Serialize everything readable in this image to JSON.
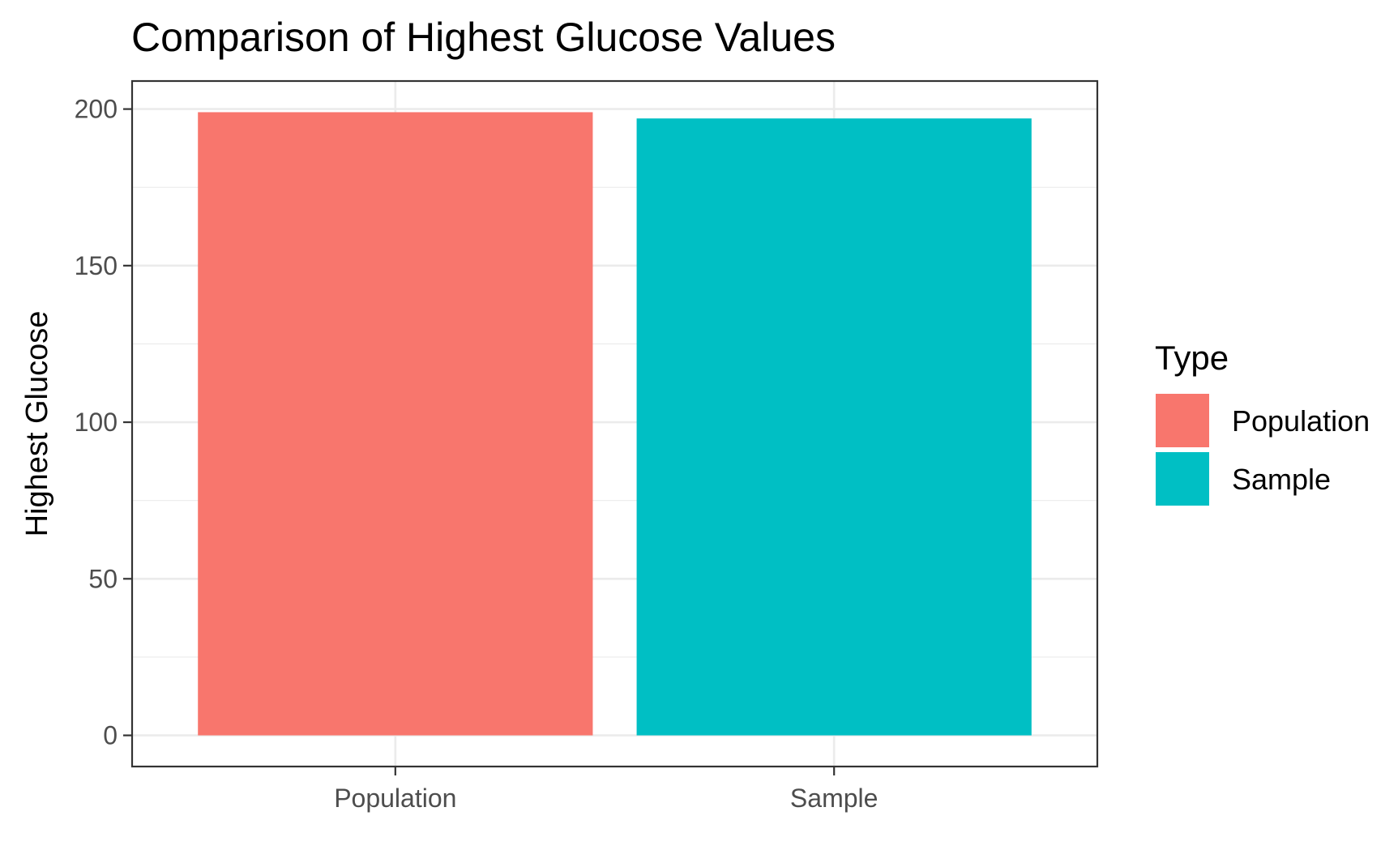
{
  "chart_data": {
    "type": "bar",
    "title": "Comparison of Highest Glucose Values",
    "xlabel": "",
    "ylabel": "Highest Glucose",
    "categories": [
      "Population",
      "Sample"
    ],
    "values": [
      199,
      197
    ],
    "colors": [
      "#F8766D",
      "#00BFC4"
    ],
    "ylim": [
      -9.95,
      208.95
    ],
    "yticks": [
      0,
      50,
      100,
      150,
      200
    ],
    "yticks_minor": [
      25,
      75,
      125,
      175
    ],
    "grid": true,
    "legend": {
      "title": "Type",
      "placement": "right",
      "entries": [
        "Population",
        "Sample"
      ]
    }
  }
}
